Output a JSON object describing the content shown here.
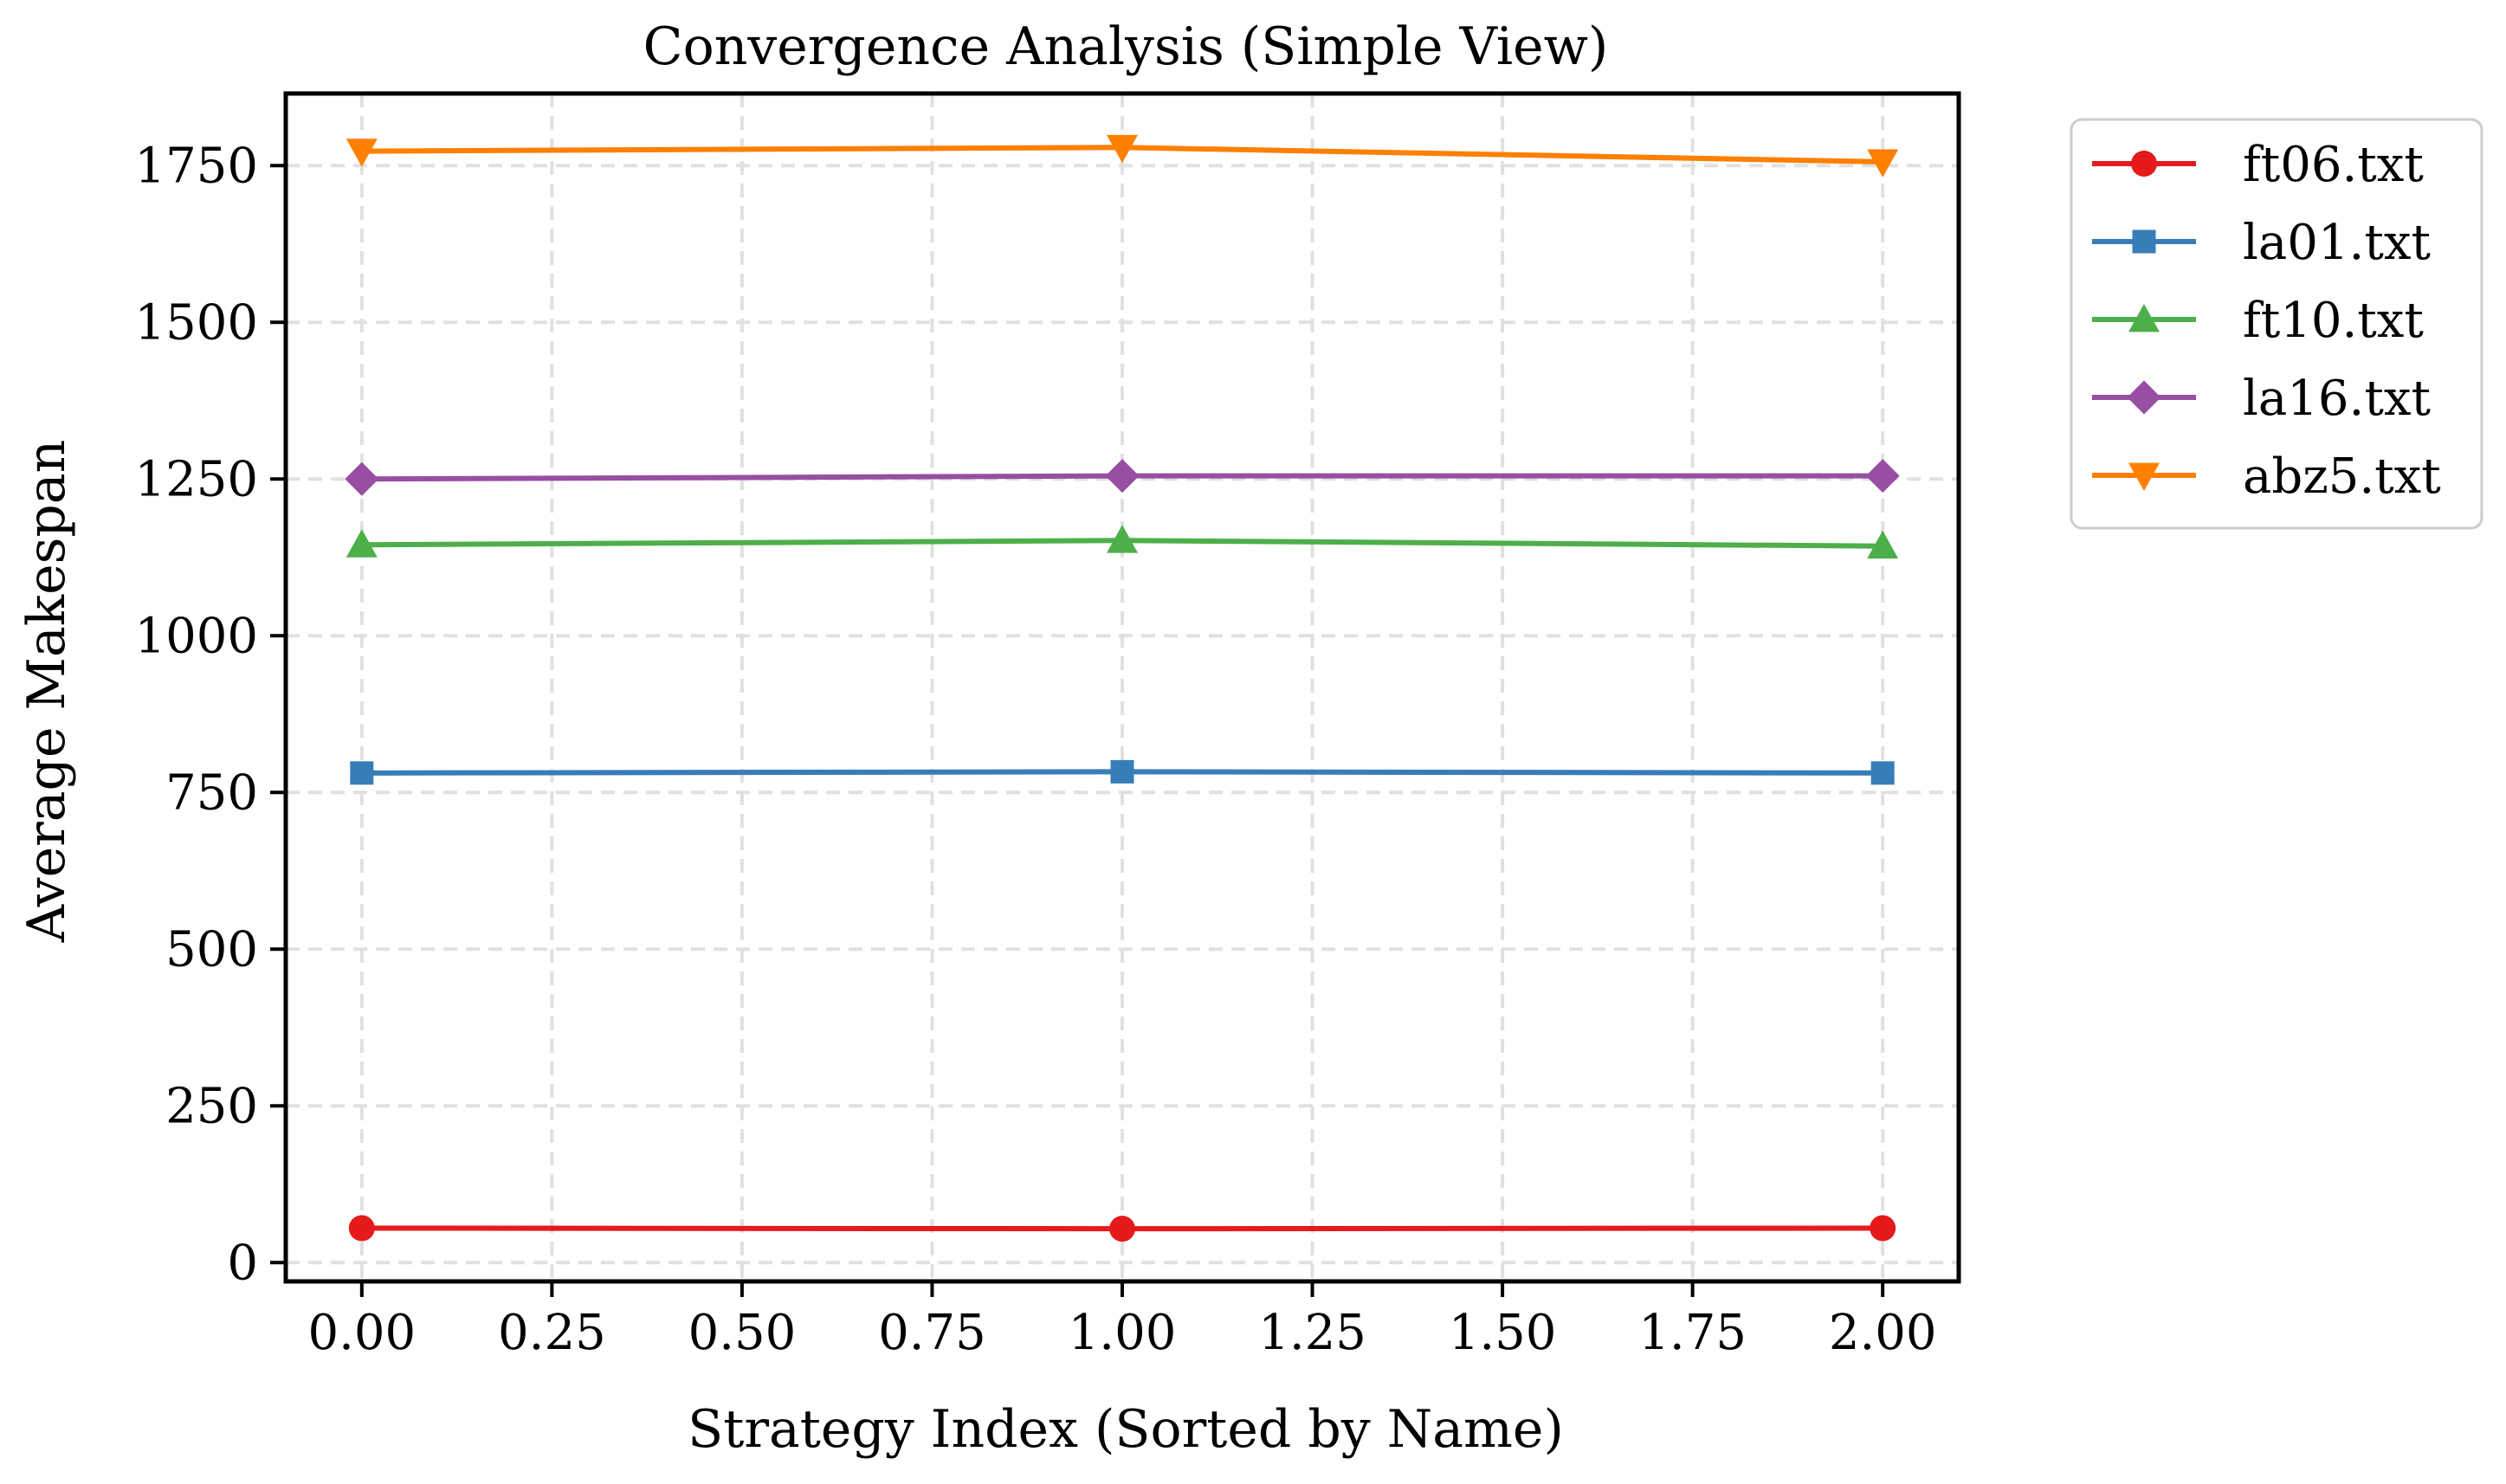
{
  "chart_data": {
    "type": "line",
    "title": "Convergence Analysis (Simple View)",
    "xlabel": "Strategy Index (Sorted by Name)",
    "ylabel": "Average Makespan",
    "x": [
      0,
      1,
      2
    ],
    "xlim": [
      -0.1,
      2.1
    ],
    "ylim": [
      -30,
      1865
    ],
    "xticks": [
      0,
      0.25,
      0.5,
      0.75,
      1,
      1.25,
      1.5,
      1.75,
      2
    ],
    "xtick_labels": [
      "0.00",
      "0.25",
      "0.50",
      "0.75",
      "1.00",
      "1.25",
      "1.50",
      "1.75",
      "2.00"
    ],
    "yticks": [
      0,
      250,
      500,
      750,
      1000,
      1250,
      1500,
      1750
    ],
    "ytick_labels": [
      "0",
      "250",
      "500",
      "750",
      "1000",
      "1250",
      "1500",
      "1750"
    ],
    "grid": true,
    "legend_position": "outside-upper-right",
    "series": [
      {
        "name": "ft06.txt",
        "color": "#e41a1c",
        "marker": "circle",
        "values": [
          55,
          54,
          55
        ]
      },
      {
        "name": "la01.txt",
        "color": "#377eb8",
        "marker": "square",
        "values": [
          781,
          783,
          781
        ]
      },
      {
        "name": "ft10.txt",
        "color": "#4daf4a",
        "marker": "triangle-up",
        "values": [
          1145,
          1152,
          1143
        ]
      },
      {
        "name": "la16.txt",
        "color": "#984ea3",
        "marker": "diamond",
        "values": [
          1250,
          1255,
          1255
        ]
      },
      {
        "name": "abz5.txt",
        "color": "#ff7f00",
        "marker": "triangle-down",
        "values": [
          1773,
          1779,
          1756
        ]
      }
    ]
  }
}
